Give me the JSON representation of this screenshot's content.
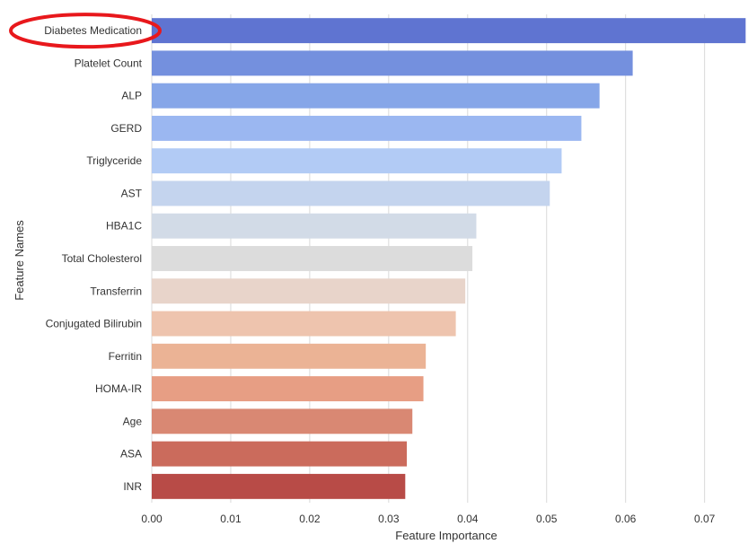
{
  "chart_data": {
    "type": "bar",
    "orientation": "horizontal",
    "xlabel": "Feature Importance",
    "ylabel": "Feature Names",
    "xlim": [
      0,
      0.0755
    ],
    "xticks": [
      "0.00",
      "0.01",
      "0.02",
      "0.03",
      "0.04",
      "0.05",
      "0.06",
      "0.07"
    ],
    "grid": "vertical",
    "categories": [
      "Diabetes Medication",
      "Platelet Count",
      "ALP",
      "GERD",
      "Triglyceride",
      "AST",
      "HBA1C",
      "Total Cholesterol",
      "Transferrin",
      "Conjugated Bilirubin",
      "Ferritin",
      "HOMA-IR",
      "Age",
      "ASA",
      "INR"
    ],
    "values": [
      0.0752,
      0.0609,
      0.0567,
      0.0544,
      0.0519,
      0.0504,
      0.0411,
      0.0406,
      0.0397,
      0.0385,
      0.0347,
      0.0344,
      0.033,
      0.0323,
      0.0321
    ],
    "colors": [
      "#5f74d1",
      "#7490de",
      "#86a6e8",
      "#9bb7f1",
      "#b2cbf5",
      "#c4d4ee",
      "#d2dbe7",
      "#dcdcdc",
      "#e8d4ca",
      "#eec4ae",
      "#ebb395",
      "#e79e84",
      "#d98873",
      "#cb6b5c",
      "#b84b47"
    ],
    "annotation": {
      "type": "ellipse",
      "target": "Diabetes Medication",
      "color": "#e8181c"
    }
  }
}
